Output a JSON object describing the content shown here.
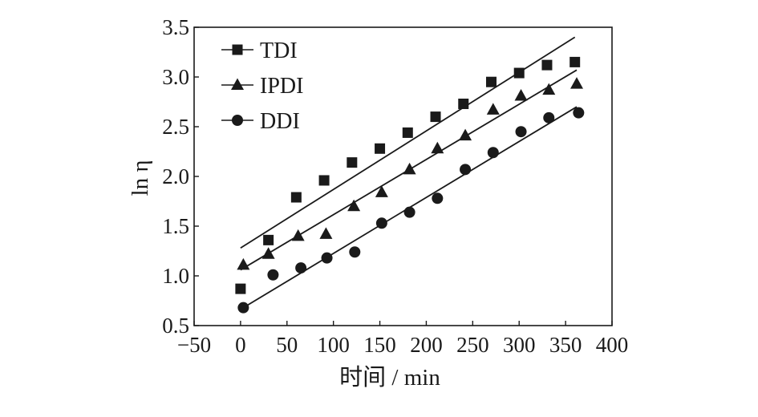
{
  "chart_data": {
    "type": "scatter",
    "title": "",
    "xlabel": "时间 / min",
    "ylabel": "ln η",
    "xlim": [
      -50,
      400
    ],
    "ylim": [
      0.5,
      3.5
    ],
    "xticks": [
      -50,
      0,
      50,
      100,
      150,
      200,
      250,
      300,
      350,
      400
    ],
    "yticks": [
      0.5,
      1.0,
      1.5,
      2.0,
      2.5,
      3.0,
      3.5
    ],
    "xtick_labels": [
      "−50",
      "0",
      "50",
      "100",
      "150",
      "200",
      "250",
      "300",
      "350",
      "400"
    ],
    "ytick_labels": [
      "0.5",
      "1.0",
      "1.5",
      "2.0",
      "2.5",
      "3.0",
      "3.5"
    ],
    "grid": false,
    "legend_position": "top-left",
    "series": [
      {
        "name": "TDI",
        "marker": "square",
        "x": [
          0,
          30,
          60,
          90,
          120,
          150,
          180,
          210,
          240,
          270,
          300,
          330,
          360
        ],
        "y": [
          0.87,
          1.36,
          1.79,
          1.96,
          2.14,
          2.28,
          2.44,
          2.6,
          2.73,
          2.95,
          3.04,
          3.12,
          3.15
        ],
        "fit_line": {
          "x": [
            0,
            360
          ],
          "y": [
            1.28,
            3.4
          ]
        }
      },
      {
        "name": "IPDI",
        "marker": "triangle",
        "x": [
          3,
          30,
          62,
          92,
          122,
          152,
          182,
          212,
          242,
          272,
          302,
          332,
          362
        ],
        "y": [
          1.11,
          1.22,
          1.4,
          1.42,
          1.7,
          1.84,
          2.07,
          2.28,
          2.41,
          2.67,
          2.81,
          2.87,
          2.93
        ],
        "fit_line": {
          "x": [
            0,
            362
          ],
          "y": [
            1.06,
            3.07
          ]
        }
      },
      {
        "name": "DDI",
        "marker": "circle",
        "x": [
          3,
          35,
          65,
          93,
          123,
          152,
          182,
          212,
          242,
          272,
          302,
          332,
          364
        ],
        "y": [
          0.68,
          1.01,
          1.08,
          1.18,
          1.24,
          1.53,
          1.64,
          1.78,
          2.07,
          2.24,
          2.45,
          2.59,
          2.64
        ],
        "fit_line": {
          "x": [
            3,
            362
          ],
          "y": [
            0.68,
            2.7
          ]
        }
      }
    ]
  }
}
